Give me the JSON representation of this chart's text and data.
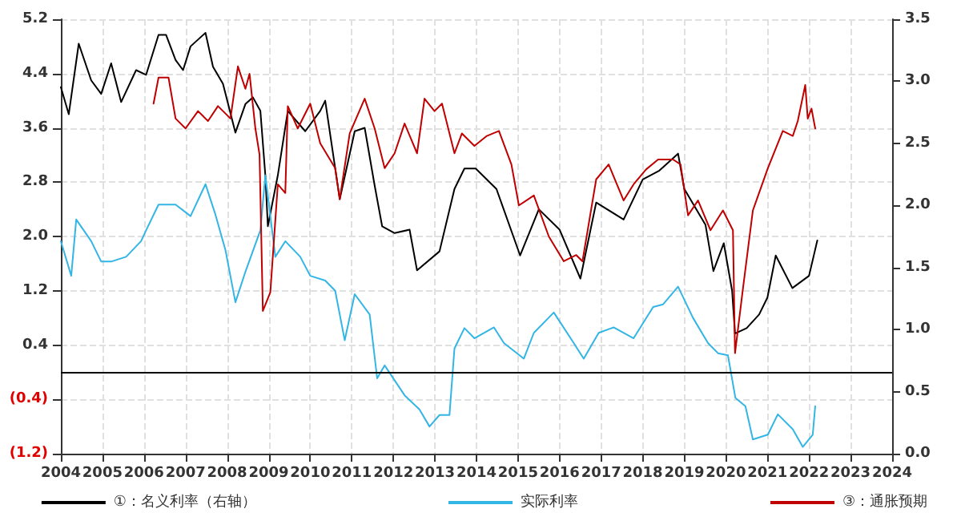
{
  "chart_data": {
    "type": "line",
    "xlim": [
      2004,
      2024
    ],
    "xticks": [
      2004,
      2005,
      2006,
      2007,
      2008,
      2009,
      2010,
      2011,
      2012,
      2013,
      2014,
      2015,
      2016,
      2017,
      2018,
      2019,
      2020,
      2021,
      2022,
      2023,
      2024
    ],
    "ylim": [
      -1.2,
      5.2
    ],
    "yticks": [
      {
        "value": -1.2,
        "label": "(1.2)"
      },
      {
        "value": -0.4,
        "label": "(0.4)"
      },
      0.4,
      1.2,
      {
        "value": 2,
        "label": "2.0"
      },
      2.8,
      3.6,
      4.4,
      5.2
    ],
    "y2lim": [
      0,
      3.5
    ],
    "y2ticks": [
      {
        "value": 0,
        "label": "0.0"
      },
      0.5,
      {
        "value": 1,
        "label": "1.0"
      },
      1.5,
      {
        "value": 2,
        "label": "2.0"
      },
      2.5,
      {
        "value": 3,
        "label": "3.0"
      },
      3.5
    ],
    "grid": true,
    "legend": "bottom",
    "marker": "none",
    "line_style": "solid",
    "ref_lines": [
      {
        "axis": "y",
        "value": 0,
        "color": "#000000"
      }
    ],
    "series": [
      {
        "name": "①：名义利率（右轴）",
        "color": "#000000",
        "axis": "y",
        "x": [
          2004.0,
          2004.19,
          2004.43,
          2004.73,
          2004.97,
          2005.21,
          2005.45,
          2005.81,
          2006.05,
          2006.35,
          2006.53,
          2006.76,
          2006.94,
          2007.12,
          2007.48,
          2007.66,
          2007.9,
          2008.2,
          2008.44,
          2008.62,
          2008.8,
          2008.92,
          2008.98,
          2009.22,
          2009.46,
          2009.88,
          2010.24,
          2010.36,
          2010.71,
          2011.07,
          2011.31,
          2011.55,
          2011.73,
          2012.03,
          2012.39,
          2012.57,
          2013.11,
          2013.47,
          2013.71,
          2013.98,
          2014.48,
          2015.05,
          2015.5,
          2016.0,
          2016.5,
          2016.88,
          2017.54,
          2018.0,
          2018.4,
          2018.85,
          2019.0,
          2019.51,
          2019.7,
          2019.95,
          2020.15,
          2020.22,
          2020.5,
          2020.8,
          2021.0,
          2021.2,
          2021.6,
          2022.0,
          2022.2
        ],
        "values": [
          4.2,
          3.8,
          4.84,
          4.3,
          4.1,
          4.55,
          3.98,
          4.45,
          4.38,
          4.97,
          4.97,
          4.6,
          4.45,
          4.8,
          5.0,
          4.5,
          4.25,
          3.53,
          3.95,
          4.05,
          3.85,
          2.9,
          2.15,
          2.9,
          3.85,
          3.55,
          3.85,
          4.0,
          2.55,
          3.55,
          3.6,
          2.75,
          2.15,
          2.05,
          2.1,
          1.5,
          1.78,
          2.7,
          3.0,
          3.0,
          2.7,
          1.72,
          2.4,
          2.1,
          1.38,
          2.5,
          2.25,
          2.84,
          2.97,
          3.22,
          2.7,
          2.17,
          1.49,
          1.9,
          1.2,
          0.57,
          0.65,
          0.85,
          1.1,
          1.72,
          1.24,
          1.42,
          1.94
        ]
      },
      {
        "name": "实际利率",
        "color": "#33b5e5",
        "axis": "y",
        "x": [
          2004.0,
          2004.25,
          2004.37,
          2004.73,
          2004.97,
          2005.21,
          2005.57,
          2005.93,
          2006.05,
          2006.35,
          2006.76,
          2007.12,
          2007.48,
          2007.72,
          2007.96,
          2008.2,
          2008.44,
          2008.8,
          2008.92,
          2009.16,
          2009.4,
          2009.76,
          2010.0,
          2010.36,
          2010.6,
          2010.83,
          2011.07,
          2011.43,
          2011.61,
          2011.79,
          2012.27,
          2012.63,
          2012.87,
          2013.11,
          2013.35,
          2013.47,
          2013.71,
          2013.95,
          2014.42,
          2014.66,
          2015.14,
          2015.38,
          2015.86,
          2016.34,
          2016.58,
          2016.94,
          2017.3,
          2017.78,
          2018.25,
          2018.49,
          2018.85,
          2019.21,
          2019.57,
          2019.81,
          2020.05,
          2020.23,
          2020.47,
          2020.65,
          2021.01,
          2021.25,
          2021.61,
          2021.85,
          2022.09,
          2022.15
        ],
        "values": [
          1.93,
          1.42,
          2.25,
          1.93,
          1.63,
          1.63,
          1.7,
          1.93,
          2.09,
          2.47,
          2.47,
          2.3,
          2.77,
          2.32,
          1.8,
          1.03,
          1.48,
          2.09,
          2.9,
          1.7,
          1.93,
          1.7,
          1.42,
          1.35,
          1.2,
          0.47,
          1.15,
          0.85,
          -0.09,
          0.1,
          -0.34,
          -0.55,
          -0.8,
          -0.63,
          -0.63,
          0.35,
          0.65,
          0.5,
          0.66,
          0.43,
          0.2,
          0.58,
          0.88,
          0.43,
          0.2,
          0.58,
          0.66,
          0.5,
          0.96,
          1.0,
          1.26,
          0.8,
          0.43,
          0.28,
          0.25,
          -0.38,
          -0.5,
          -0.99,
          -0.92,
          -0.62,
          -0.84,
          -1.1,
          -0.92,
          -0.5
        ]
      },
      {
        "name": "③：通胀预期",
        "color": "#c00000",
        "axis": "y2",
        "x": [
          2006.23,
          2006.35,
          2006.59,
          2006.76,
          2007.0,
          2007.3,
          2007.54,
          2007.78,
          2008.08,
          2008.26,
          2008.44,
          2008.54,
          2008.68,
          2008.78,
          2008.86,
          2009.04,
          2009.22,
          2009.4,
          2009.46,
          2009.7,
          2010.0,
          2010.24,
          2010.6,
          2010.71,
          2010.95,
          2011.31,
          2011.55,
          2011.79,
          2012.03,
          2012.27,
          2012.57,
          2012.75,
          2012.99,
          2013.17,
          2013.47,
          2013.65,
          2013.95,
          2014.25,
          2014.54,
          2014.84,
          2015.02,
          2015.38,
          2015.74,
          2016.1,
          2016.4,
          2016.55,
          2016.88,
          2017.18,
          2017.54,
          2017.78,
          2018.08,
          2018.37,
          2018.73,
          2018.91,
          2019.09,
          2019.33,
          2019.63,
          2019.93,
          2020.17,
          2020.22,
          2020.4,
          2020.65,
          2021.01,
          2021.37,
          2021.61,
          2021.73,
          2021.91,
          2021.97,
          2022.06,
          2022.15
        ],
        "values": [
          2.82,
          3.03,
          3.03,
          2.7,
          2.62,
          2.76,
          2.68,
          2.8,
          2.7,
          3.12,
          2.94,
          3.06,
          2.62,
          2.41,
          1.15,
          1.3,
          2.17,
          2.1,
          2.8,
          2.62,
          2.82,
          2.5,
          2.3,
          2.05,
          2.58,
          2.86,
          2.62,
          2.3,
          2.42,
          2.66,
          2.42,
          2.86,
          2.76,
          2.82,
          2.42,
          2.58,
          2.48,
          2.56,
          2.6,
          2.33,
          2.0,
          2.08,
          1.75,
          1.55,
          1.6,
          1.55,
          2.21,
          2.33,
          2.04,
          2.17,
          2.29,
          2.37,
          2.37,
          2.33,
          1.92,
          2.04,
          1.8,
          1.96,
          1.8,
          0.81,
          1.3,
          1.96,
          2.3,
          2.6,
          2.56,
          2.68,
          2.97,
          2.7,
          2.78,
          2.62
        ]
      }
    ]
  }
}
